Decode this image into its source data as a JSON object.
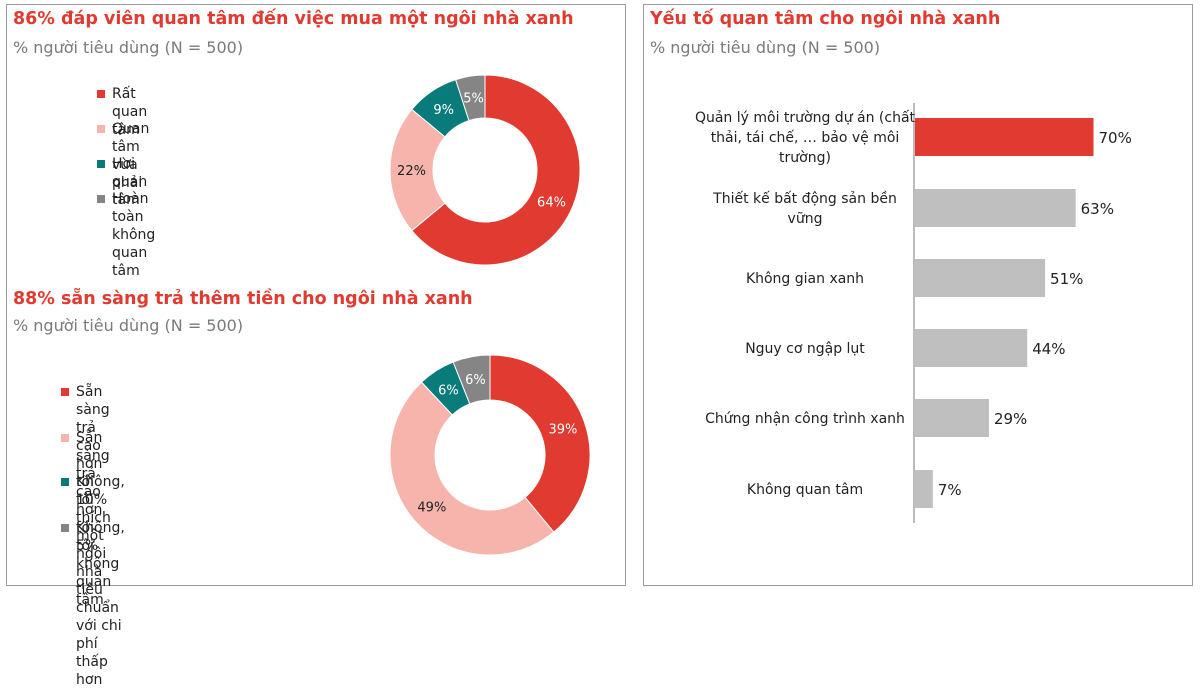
{
  "colors": {
    "red": "#e03a31",
    "pink": "#f6b4ad",
    "teal": "#0a7b7b",
    "gray": "#858585",
    "bar_gray": "#bfbfbf",
    "title_red": "#e03a31"
  },
  "left_top": {
    "title": "86% đáp viên quan tâm đến việc mua một ngôi nhà xanh",
    "subtitle": "% người tiêu dùng (N = 500)"
  },
  "left_bottom": {
    "title": "88% sẵn sàng trả thêm tiền cho ngôi nhà xanh",
    "subtitle": "% người tiêu dùng (N = 500)"
  },
  "right": {
    "title": "Yếu tố quan tâm cho ngôi nhà xanh",
    "subtitle": "% người tiêu dùng (N = 500)"
  },
  "chart_data": [
    {
      "type": "pie",
      "title": "86% đáp viên quan tâm đến việc mua một ngôi nhà xanh",
      "subtitle": "% người tiêu dùng (N = 500)",
      "donut": true,
      "legend": "left",
      "labels": [
        "Rất quan tâm",
        "Quan tâm vừa phải",
        "Hơi quan tâm",
        "Hoàn toàn không quan tâm"
      ],
      "values": [
        64,
        22,
        9,
        5
      ],
      "value_labels": [
        "64%",
        "22%",
        "9%",
        "5%"
      ],
      "colors": [
        "#e03a31",
        "#f6b4ad",
        "#0a7b7b",
        "#858585"
      ]
    },
    {
      "type": "pie",
      "title": "88% sẵn sàng trả thêm tiền cho ngôi nhà xanh",
      "subtitle": "% người tiêu dùng (N = 500)",
      "donut": true,
      "legend": "left",
      "labels": [
        "Sẵn sàng trả cao hơn tới 10%",
        "Sẵn sàng trả cao hơn tới 5%",
        "Không, tôi thích một ngôi nhà tiêu chuẩn với chi phí thấp hơn",
        "Không, tôi không quan tâm"
      ],
      "label_lines": [
        [
          "Sẵn sàng trả cao hơn tới 10%"
        ],
        [
          "Sẵn sàng trả cao hơn tới 5%"
        ],
        [
          "Không, tôi thích một ngôi nhà tiêu chuẩn",
          "với chi phí thấp hơn"
        ],
        [
          "Không, tôi không quan tâm"
        ]
      ],
      "values": [
        39,
        49,
        6,
        6
      ],
      "value_labels": [
        "39%",
        "49%",
        "6%",
        "6%"
      ],
      "colors": [
        "#e03a31",
        "#f6b4ad",
        "#0a7b7b",
        "#858585"
      ]
    },
    {
      "type": "bar",
      "orientation": "horizontal",
      "title": "Yếu tố quan tâm cho ngôi nhà xanh",
      "subtitle": "% người tiêu dùng (N = 500)",
      "categories": [
        "Quản lý môi trường dự án (chất thải, tái chế, … bảo vệ môi trường)",
        "Thiết kế bất động sản bền vững",
        "Không gian xanh",
        "Nguy cơ ngập lụt",
        "Chứng nhận công trình xanh",
        "Không quan tâm"
      ],
      "category_lines": [
        [
          "Quản lý môi trường dự án (chất",
          "thải, tái chế, … bảo vệ môi",
          "trường)"
        ],
        [
          "Thiết kế bất động sản bền",
          "vững"
        ],
        [
          "Không gian xanh"
        ],
        [
          "Nguy cơ ngập lụt"
        ],
        [
          "Chứng nhận công trình xanh"
        ],
        [
          "Không quan tâm"
        ]
      ],
      "values": [
        70,
        63,
        51,
        44,
        29,
        7
      ],
      "value_labels": [
        "70%",
        "63%",
        "51%",
        "44%",
        "29%",
        "7%"
      ],
      "bar_colors": [
        "#e03a31",
        "#bfbfbf",
        "#bfbfbf",
        "#bfbfbf",
        "#bfbfbf",
        "#bfbfbf"
      ],
      "xlim": [
        0,
        100
      ],
      "grid": false
    }
  ]
}
